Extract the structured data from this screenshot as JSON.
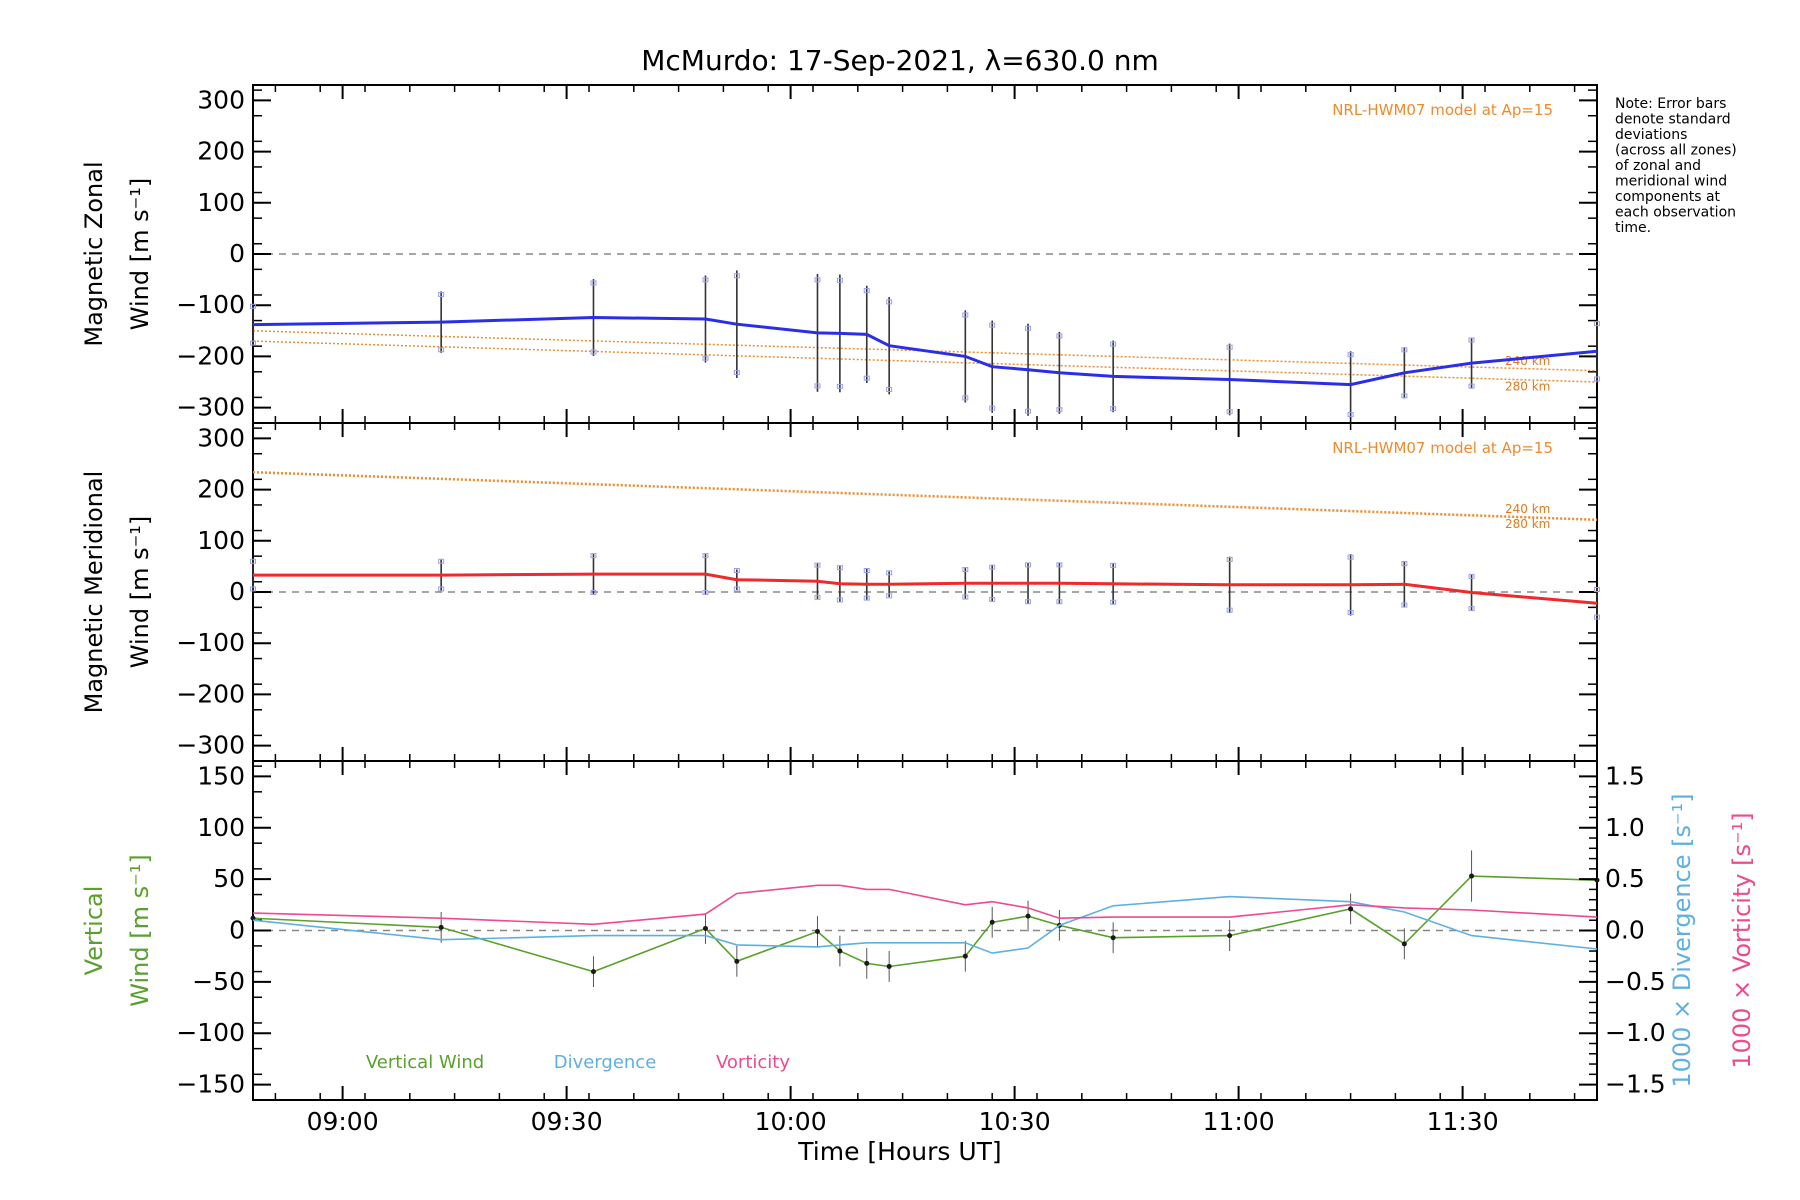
{
  "chart_data": {
    "title": "McMurdo: 17-Sep-2021, λ=630.0 nm",
    "xlabel": "Time [Hours UT]",
    "xlim": [
      8.8,
      11.8
    ],
    "xticks": [
      9.0,
      9.5,
      10.0,
      10.5,
      11.0,
      11.5
    ],
    "xtick_labels": [
      "09:00",
      "09:30",
      "10:00",
      "10:30",
      "11:00",
      "11:30"
    ],
    "note": [
      "Note: Error bars",
      "denote standard",
      "deviations",
      "(across all zones)",
      "of zonal and",
      "meridional wind",
      "components at",
      "each observation",
      "time."
    ],
    "obs_times": [
      8.8,
      9.22,
      9.56,
      9.81,
      9.88,
      10.06,
      10.11,
      10.17,
      10.22,
      10.39,
      10.45,
      10.53,
      10.6,
      10.72,
      10.98,
      11.25,
      11.37,
      11.52,
      11.8
    ],
    "panels": [
      {
        "type": "line",
        "ylabel": [
          "Magnetic Zonal",
          "Wind [m s⁻¹]"
        ],
        "ylim": [
          -330,
          330
        ],
        "yticks": [
          -300,
          -200,
          -100,
          0,
          100,
          200,
          300
        ],
        "ytick_labels": [
          "−300",
          "−200",
          "−100",
          "0",
          "100",
          "200",
          "300"
        ],
        "model_label": "NRL-HWM07 model at Ap=15",
        "model_series": [
          {
            "name": "240 km",
            "x": [
              8.8,
              11.8
            ],
            "y": [
              -150,
              -228
            ]
          },
          {
            "name": "280 km",
            "x": [
              8.8,
              11.8
            ],
            "y": [
              -170,
              -250
            ]
          }
        ],
        "series": [
          {
            "name": "Zonal wind",
            "color": "#2a2fe6",
            "x": [
              8.8,
              9.22,
              9.56,
              9.81,
              9.88,
              10.06,
              10.11,
              10.17,
              10.22,
              10.39,
              10.45,
              10.53,
              10.6,
              10.72,
              10.98,
              11.25,
              11.37,
              11.52,
              11.8
            ],
            "y": [
              -138,
              -133,
              -124,
              -127,
              -137,
              -154,
              -155,
              -157,
              -179,
              -200,
              -220,
              -226,
              -232,
              -239,
              -245,
              -255,
              -232,
              -213,
              -190
            ],
            "err": [
              40,
              60,
              75,
              85,
              105,
              115,
              115,
              95,
              95,
              90,
              90,
              90,
              80,
              70,
              70,
              65,
              50,
              50,
              60
            ]
          }
        ]
      },
      {
        "type": "line",
        "ylabel": [
          "Magnetic Meridional",
          "Wind [m s⁻¹]"
        ],
        "ylim": [
          -330,
          330
        ],
        "yticks": [
          -300,
          -200,
          -100,
          0,
          100,
          200,
          300
        ],
        "ytick_labels": [
          "−300",
          "−200",
          "−100",
          "0",
          "100",
          "200",
          "300"
        ],
        "model_label": "NRL-HWM07 model at Ap=15",
        "model_series": [
          {
            "name": "240 km",
            "x": [
              8.8,
              11.8
            ],
            "y": [
              235,
              142
            ]
          },
          {
            "name": "280 km",
            "x": [
              8.8,
              11.8
            ],
            "y": [
              233,
              140
            ]
          }
        ],
        "series": [
          {
            "name": "Meridional wind",
            "color": "#ef2a2a",
            "x": [
              8.8,
              9.22,
              9.56,
              9.81,
              9.88,
              10.06,
              10.11,
              10.17,
              10.22,
              10.39,
              10.45,
              10.53,
              10.6,
              10.72,
              10.98,
              11.25,
              11.37,
              11.52,
              11.8
            ],
            "y": [
              33,
              33,
              35,
              35,
              24,
              21,
              16,
              15,
              15,
              17,
              17,
              17,
              17,
              16,
              14,
              14,
              15,
              -1,
              -22
            ],
            "err": [
              30,
              30,
              40,
              40,
              20,
              35,
              35,
              30,
              25,
              30,
              35,
              40,
              40,
              40,
              55,
              60,
              45,
              35,
              30
            ]
          }
        ]
      },
      {
        "type": "line",
        "ylabel": [
          "Vertical",
          "Wind [m s⁻¹]"
        ],
        "ylim": [
          -165,
          165
        ],
        "yticks": [
          -150,
          -100,
          -50,
          0,
          50,
          100,
          150
        ],
        "ytick_labels": [
          "−150",
          "−100",
          "−50",
          "0",
          "50",
          "100",
          "150"
        ],
        "y2label_divergence": "1000 × Divergence [s⁻¹]",
        "y2label_vorticity": "1000 × Vorticity [s⁻¹]",
        "y2lim": [
          -1.65,
          1.65
        ],
        "y2ticks": [
          -1.5,
          -1.0,
          -0.5,
          0.0,
          0.5,
          1.0,
          1.5
        ],
        "y2tick_labels": [
          "−1.5",
          "−1.0",
          "−0.5",
          "0.0",
          "0.5",
          "1.0",
          "1.5"
        ],
        "legend": [
          "Vertical Wind",
          "Divergence",
          "Vorticity"
        ],
        "series": [
          {
            "name": "Vertical Wind",
            "color": "#5aa02c",
            "axis": "left",
            "x": [
              8.8,
              9.22,
              9.56,
              9.81,
              9.88,
              10.06,
              10.11,
              10.17,
              10.22,
              10.39,
              10.45,
              10.53,
              10.6,
              10.72,
              10.98,
              11.25,
              11.37,
              11.52,
              11.8
            ],
            "y": [
              12,
              3,
              -40,
              2,
              -30,
              -1,
              -20,
              -32,
              -35,
              -25,
              8,
              14,
              5,
              -7,
              -5,
              21,
              -13,
              53,
              49
            ],
            "err": [
              0,
              15,
              15,
              15,
              15,
              15,
              15,
              15,
              15,
              15,
              15,
              15,
              15,
              15,
              15,
              15,
              15,
              25,
              0
            ]
          },
          {
            "name": "Divergence",
            "color": "#5fb0e0",
            "axis": "right",
            "x": [
              8.8,
              9.22,
              9.56,
              9.81,
              9.88,
              10.06,
              10.11,
              10.17,
              10.22,
              10.39,
              10.45,
              10.53,
              10.6,
              10.72,
              10.98,
              11.25,
              11.37,
              11.52,
              11.8
            ],
            "y": [
              0.1,
              -0.09,
              -0.05,
              -0.05,
              -0.14,
              -0.16,
              -0.14,
              -0.12,
              -0.12,
              -0.12,
              -0.22,
              -0.17,
              0.05,
              0.24,
              0.33,
              0.28,
              0.18,
              -0.05,
              -0.18
            ]
          },
          {
            "name": "Vorticity",
            "color": "#ee4a8e",
            "axis": "right",
            "x": [
              8.8,
              9.22,
              9.56,
              9.81,
              9.88,
              10.06,
              10.11,
              10.17,
              10.22,
              10.39,
              10.45,
              10.53,
              10.6,
              10.72,
              10.98,
              11.25,
              11.37,
              11.52,
              11.8
            ],
            "y": [
              0.17,
              0.12,
              0.06,
              0.16,
              0.36,
              0.44,
              0.44,
              0.4,
              0.4,
              0.25,
              0.28,
              0.22,
              0.12,
              0.13,
              0.13,
              0.25,
              0.22,
              0.2,
              0.13
            ]
          }
        ]
      }
    ]
  }
}
